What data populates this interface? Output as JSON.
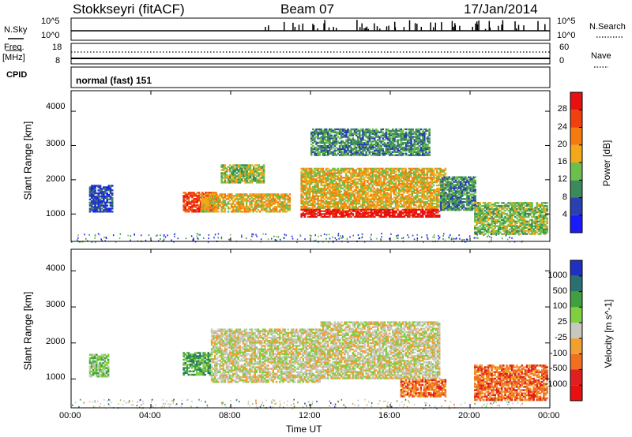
{
  "header": {
    "radar": "Stokkseyri (fitACF)",
    "beam": "Beam 07",
    "date": "17/Jan/2014"
  },
  "top_panels": {
    "nsky_label": "N.Sky",
    "nsky_top": "10^5",
    "nsky_bottom": "10^0",
    "nsearch_label": "N.Search",
    "nsearch_top": "10^5",
    "nsearch_bottom": "10^0",
    "freq_label": "Freq.",
    "freq_unit": "[MHz]",
    "freq_top": "18",
    "freq_bottom": "8",
    "nave_label": "Nave",
    "nave_top": "60",
    "nave_bottom": "0",
    "cpid_label": "CPID",
    "cpid_value": "normal (fast) 151"
  },
  "chart_data": [
    {
      "type": "heatmap",
      "panel": "power",
      "ylabel": "Slant Range [km]",
      "yticks": [
        "1000",
        "2000",
        "3000",
        "4000"
      ],
      "ylim": [
        200,
        4600
      ],
      "xlim": [
        0,
        24
      ],
      "colorbar": {
        "label": "Power [dB]",
        "ticks": [
          "4",
          "8",
          "12",
          "16",
          "20",
          "24",
          "28"
        ],
        "colors": [
          "#1a1aff",
          "#2a3fb0",
          "#3c8a5a",
          "#6cbf4a",
          "#f2a818",
          "#f57a10",
          "#f04010",
          "#e81010"
        ]
      },
      "regions": [
        {
          "t0": 0.9,
          "t1": 2.1,
          "r0": 1050,
          "r1": 1850,
          "level": 1
        },
        {
          "t0": 5.6,
          "t1": 7.3,
          "r0": 1050,
          "r1": 1650,
          "level": 6
        },
        {
          "t0": 6.5,
          "t1": 11.0,
          "r0": 1050,
          "r1": 1600,
          "level": 4
        },
        {
          "t0": 7.5,
          "t1": 9.7,
          "r0": 1900,
          "r1": 2450,
          "level": 3
        },
        {
          "t0": 11.5,
          "t1": 18.8,
          "r0": 1150,
          "r1": 2350,
          "level": 4
        },
        {
          "t0": 11.5,
          "t1": 18.5,
          "r0": 900,
          "r1": 1150,
          "level": 7
        },
        {
          "t0": 12.0,
          "t1": 18.0,
          "r0": 2700,
          "r1": 3500,
          "level": 2
        },
        {
          "t0": 18.5,
          "t1": 20.3,
          "r0": 1100,
          "r1": 2100,
          "level": 2
        },
        {
          "t0": 20.2,
          "t1": 23.9,
          "r0": 400,
          "r1": 1350,
          "level": 3
        }
      ]
    },
    {
      "type": "heatmap",
      "panel": "velocity",
      "ylabel": "Slant Range [km]",
      "yticks": [
        "1000",
        "2000",
        "3000",
        "4000"
      ],
      "ylim": [
        200,
        4600
      ],
      "xlim": [
        0,
        24
      ],
      "xticks": [
        "00:00",
        "04:00",
        "08:00",
        "12:00",
        "16:00",
        "20:00",
        "00:00"
      ],
      "xlabel": "Time UT",
      "colorbar": {
        "label": "Velocity [m s^-1]",
        "ticks": [
          "1000",
          "500",
          "100",
          "25",
          "-25",
          "-100",
          "-500",
          "-1000"
        ],
        "colors": [
          "#2030c0",
          "#2a7070",
          "#40a040",
          "#80cf40",
          "#c8c8c0",
          "#f0a030",
          "#f07020",
          "#e02020",
          "#e81010"
        ]
      },
      "regions": [
        {
          "t0": 0.9,
          "t1": 1.9,
          "r0": 1050,
          "r1": 1700,
          "level": 3
        },
        {
          "t0": 5.6,
          "t1": 7.0,
          "r0": 1100,
          "r1": 1750,
          "level": 2
        },
        {
          "t0": 7.0,
          "t1": 12.5,
          "r0": 900,
          "r1": 2400,
          "level": 4
        },
        {
          "t0": 12.5,
          "t1": 18.5,
          "r0": 1000,
          "r1": 2600,
          "level": 4
        },
        {
          "t0": 16.5,
          "t1": 18.8,
          "r0": 500,
          "r1": 1000,
          "level": 6
        },
        {
          "t0": 20.2,
          "t1": 23.9,
          "r0": 400,
          "r1": 1400,
          "level": 6
        }
      ]
    }
  ]
}
